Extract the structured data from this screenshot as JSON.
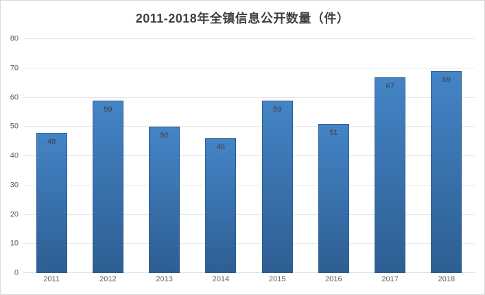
{
  "chart_data": {
    "type": "bar",
    "title": "2011-2018年全镇信息公开数量（件）",
    "categories": [
      "2011",
      "2012",
      "2013",
      "2014",
      "2015",
      "2016",
      "2017",
      "2018"
    ],
    "values": [
      48,
      59,
      50,
      46,
      59,
      51,
      67,
      69
    ],
    "xlabel": "",
    "ylabel": "",
    "ylim": [
      0,
      80
    ],
    "yticks": [
      0,
      10,
      20,
      30,
      40,
      50,
      60,
      70,
      80
    ],
    "grid": "horizontal",
    "legend_position": "none",
    "data_labels": "inside-end"
  },
  "colors": {
    "background": "#ffffff",
    "frame_border": "#d9d9d9",
    "title_text": "#404040",
    "tick_text": "#595959",
    "data_label_text": "#3f3f3f",
    "gridline": "#e6e6e6",
    "axis_line": "#d9d9d9",
    "bar_fill_top": "#4484c6",
    "bar_fill_bottom": "#2e5e93",
    "bar_border": "#2c5c90"
  }
}
